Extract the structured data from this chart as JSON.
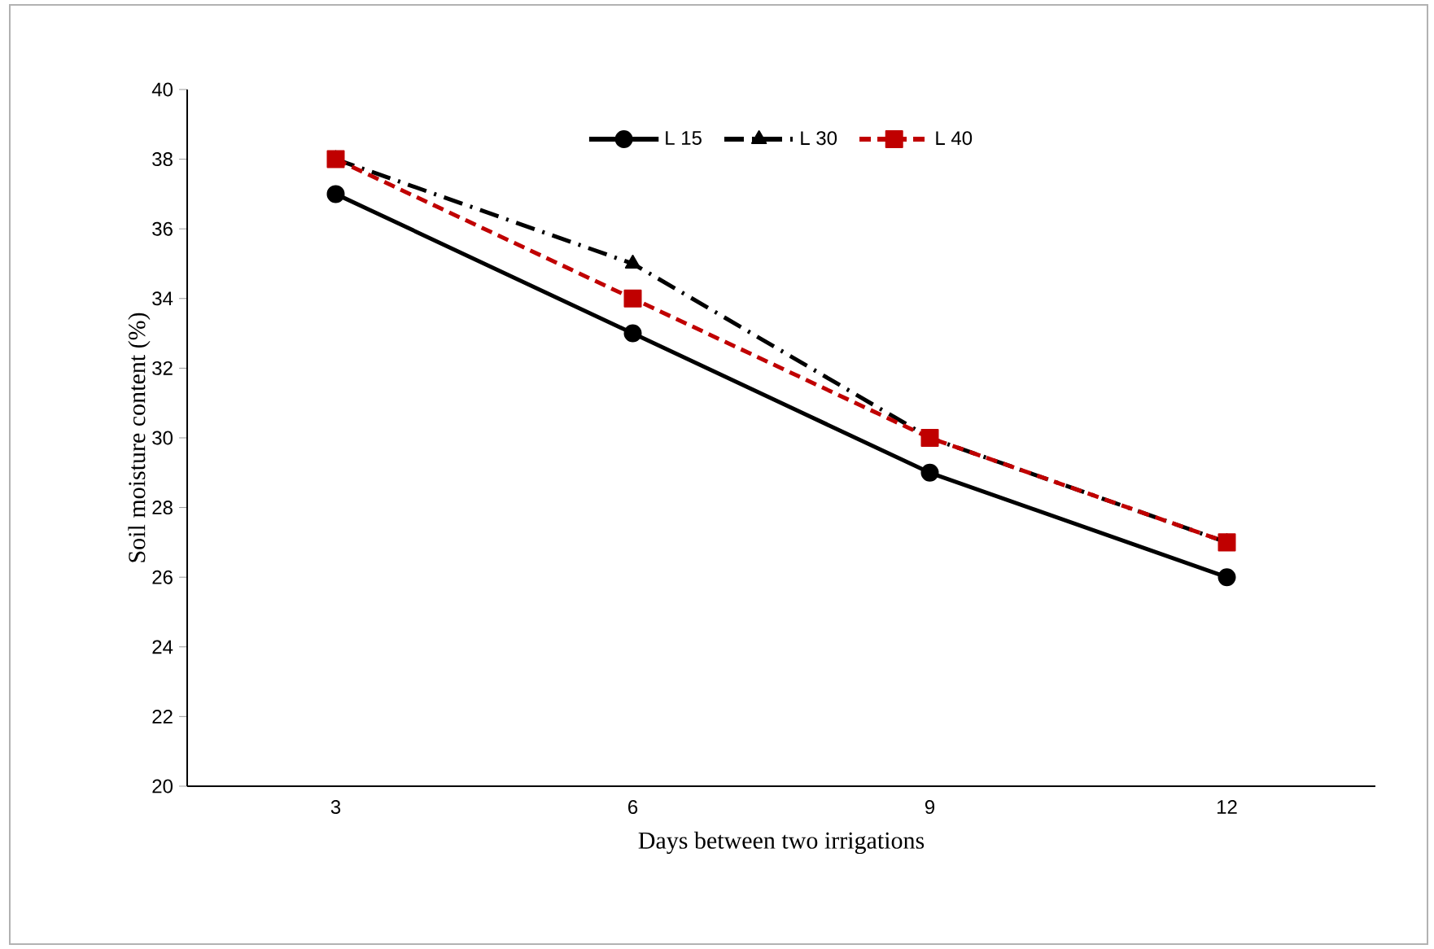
{
  "chart_data": {
    "type": "line",
    "xlabel": "Days between two irrigations",
    "ylabel": "Soil moisture content (%)",
    "categories": [
      "3",
      "6",
      "9",
      "12"
    ],
    "ylim": [
      20,
      40
    ],
    "yticks": [
      20,
      22,
      24,
      26,
      28,
      30,
      32,
      34,
      36,
      38,
      40
    ],
    "grid": false,
    "legend": "top",
    "series": [
      {
        "name": "L 15",
        "color": "#000000",
        "values": [
          37,
          33,
          29,
          26
        ],
        "marker": "circle",
        "line_style": "solid"
      },
      {
        "name": "L 30",
        "color": "#000000",
        "values": [
          38,
          35,
          30,
          27
        ],
        "marker": "triangle",
        "line_style": "dashdot"
      },
      {
        "name": "L 40",
        "color": "#c00000",
        "values": [
          38,
          34,
          30,
          27
        ],
        "marker": "square",
        "line_style": "dashed"
      }
    ]
  }
}
